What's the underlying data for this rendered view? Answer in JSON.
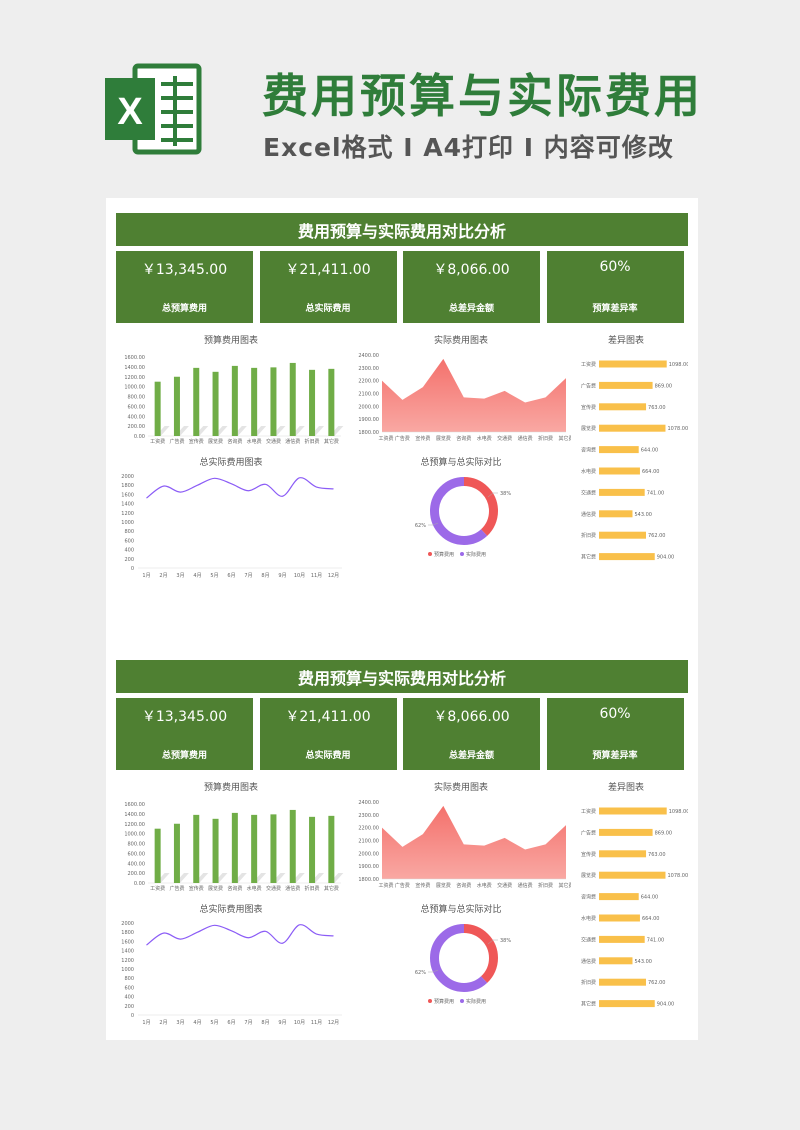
{
  "header": {
    "title": "费用预算与实际费用",
    "subtitle": "Excel格式 I A4打印 I 内容可修改",
    "logo_letter": "X",
    "brand_color": "#2f7d3a"
  },
  "colors": {
    "panel": "#4f8032",
    "bar": "#70ad47",
    "area": "#f4716c",
    "line": "#8b5cf6",
    "diff_bar": "#f9c04a",
    "donut_budget": "#ef5757",
    "donut_actual": "#9c6ae8"
  },
  "dashboards": [
    {
      "title": "费用预算与实际费用对比分析",
      "kpis": [
        {
          "value": "￥13,345.00",
          "label": "总预算费用"
        },
        {
          "value": "￥21,411.00",
          "label": "总实际费用"
        },
        {
          "value": "￥8,066.00",
          "label": "总差异金额"
        },
        {
          "value": "60%",
          "label": "预算差异率"
        }
      ]
    },
    {
      "title": "费用预算与实际费用对比分析",
      "kpis": [
        {
          "value": "￥13,345.00",
          "label": "总预算费用"
        },
        {
          "value": "￥21,411.00",
          "label": "总实际费用"
        },
        {
          "value": "￥8,066.00",
          "label": "总差异金额"
        },
        {
          "value": "60%",
          "label": "预算差异率"
        }
      ]
    }
  ],
  "chart_data": [
    {
      "type": "bar",
      "title": "预算费用图表",
      "categories": [
        "工资费",
        "广告费",
        "宣传费",
        "展览费",
        "咨询费",
        "水电费",
        "交通费",
        "通信费",
        "折旧费",
        "其它费"
      ],
      "values": [
        1100,
        1200,
        1380,
        1300,
        1420,
        1380,
        1390,
        1480,
        1340,
        1360
      ],
      "yticks": [
        "0.00",
        "200.00",
        "400.00",
        "600.00",
        "800.00",
        "1000.00",
        "1200.00",
        "1400.00",
        "1600.00"
      ],
      "ylim": [
        0,
        1600
      ]
    },
    {
      "type": "area",
      "title": "实际费用图表",
      "categories": [
        "工资费",
        "广告费",
        "宣传费",
        "展览费",
        "咨询费",
        "水电费",
        "交通费",
        "通信费",
        "折旧费",
        "其它费"
      ],
      "values": [
        2200,
        2050,
        2150,
        2370,
        2070,
        2060,
        2120,
        2030,
        2070,
        2220
      ],
      "yticks": [
        "1800.00",
        "1900.00",
        "2000.00",
        "2100.00",
        "2200.00",
        "2300.00",
        "2400.00"
      ],
      "ylim": [
        1800,
        2400
      ]
    },
    {
      "type": "bar",
      "title": "差异图表",
      "categories": [
        "工资费",
        "广告费",
        "宣传费",
        "展览费",
        "咨询费",
        "水电费",
        "交通费",
        "通信费",
        "折旧费",
        "其它费"
      ],
      "values": [
        1098,
        869,
        763,
        1078,
        644,
        664,
        741,
        543,
        762,
        904
      ],
      "labels": [
        "1098.00",
        "869.00",
        "763.00",
        "1078.00",
        "644.00",
        "664.00",
        "741.00",
        "543.00",
        "762.00",
        "904.00"
      ],
      "xlim": [
        0,
        1200
      ]
    },
    {
      "type": "line",
      "title": "总实际费用图表",
      "categories": [
        "1月",
        "2月",
        "3月",
        "4月",
        "5月",
        "6月",
        "7月",
        "8月",
        "9月",
        "10月",
        "11月",
        "12月"
      ],
      "values": [
        1520,
        1780,
        1650,
        1800,
        1950,
        1830,
        1680,
        1820,
        1560,
        1960,
        1760,
        1720
      ],
      "yticks": [
        "0",
        "200",
        "400",
        "600",
        "800",
        "1000",
        "1200",
        "1400",
        "1600",
        "1800",
        "2000"
      ],
      "ylim": [
        0,
        2000
      ]
    },
    {
      "type": "pie",
      "title": "总预算与总实际对比",
      "labels": [
        "预算费用",
        "实际费用"
      ],
      "values": [
        38,
        62
      ],
      "value_labels": [
        "38%",
        "62%"
      ]
    }
  ]
}
